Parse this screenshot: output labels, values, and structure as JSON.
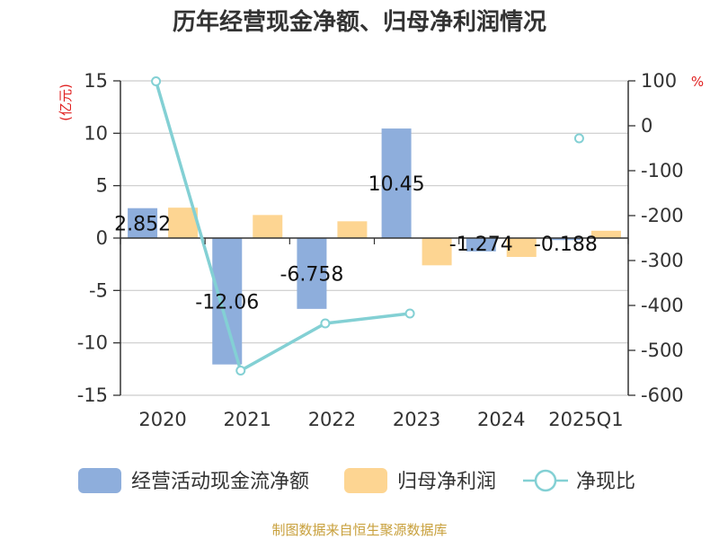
{
  "chart_data": {
    "type": "bar",
    "title": "历年经营现金净额、归母净利润情况",
    "categories": [
      "2020",
      "2021",
      "2022",
      "2023",
      "2024",
      "2025Q1"
    ],
    "left_axis": {
      "unit": "(亿元)",
      "ylim": [
        -15,
        15
      ],
      "ticks": [
        15,
        10,
        5,
        0,
        -5,
        -10,
        -15
      ]
    },
    "right_axis": {
      "unit": "%",
      "ylim": [
        -600,
        100
      ],
      "ticks": [
        100,
        0,
        -100,
        -200,
        -300,
        -400,
        -500,
        -600
      ]
    },
    "series": [
      {
        "name": "经营活动现金流净额",
        "type": "bar",
        "axis": "left",
        "values": [
          2.852,
          -12.06,
          -6.758,
          10.45,
          -1.274,
          -0.188
        ],
        "labels": [
          "2.852",
          "-12.06",
          "-6.758",
          "10.45",
          "-1.274",
          "-0.188"
        ]
      },
      {
        "name": "归母净利润",
        "type": "bar",
        "axis": "left",
        "values": [
          2.9,
          2.2,
          1.6,
          -2.6,
          -1.8,
          0.7
        ]
      },
      {
        "name": "净现比",
        "type": "line",
        "axis": "right",
        "values": [
          99,
          -545,
          -440,
          -418,
          null,
          -28
        ]
      }
    ],
    "colors": {
      "cash": "#8eaedc",
      "profit": "#fdd592",
      "ratio": "#83d0d4"
    },
    "grid": true,
    "legend": "bottom"
  },
  "source": "制图数据来自恒生聚源数据库"
}
